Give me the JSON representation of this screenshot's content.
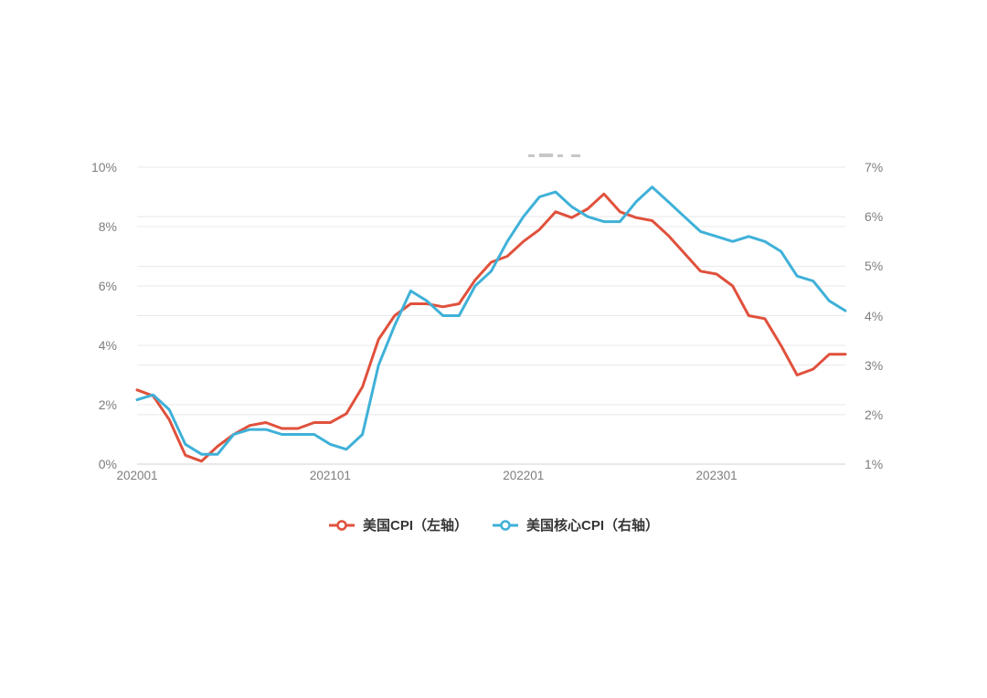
{
  "colors": {
    "cpi_line": "#e0513c",
    "core_cpi_line": "#3fb1d8",
    "grid_line": "#e8e8e8",
    "axis_baseline": "#d2d2d2",
    "tick_text": "#7e7e7e",
    "legend_text": "#363636"
  },
  "chart_data": {
    "type": "line",
    "x": [
      "202001",
      "202002",
      "202003",
      "202004",
      "202005",
      "202006",
      "202007",
      "202008",
      "202009",
      "202010",
      "202011",
      "202012",
      "202101",
      "202102",
      "202103",
      "202104",
      "202105",
      "202106",
      "202107",
      "202108",
      "202109",
      "202110",
      "202111",
      "202112",
      "202201",
      "202202",
      "202203",
      "202204",
      "202205",
      "202206",
      "202207",
      "202208",
      "202209",
      "202210",
      "202211",
      "202212",
      "202301",
      "202302",
      "202303",
      "202304",
      "202305",
      "202306",
      "202307",
      "202308",
      "202309"
    ],
    "x_tick_labels": [
      "202001",
      "202101",
      "202201",
      "202301"
    ],
    "series": [
      {
        "name": "美国CPI（左轴）",
        "axis": "left",
        "color": "#e0513c",
        "values": [
          2.5,
          2.3,
          1.5,
          0.3,
          0.1,
          0.6,
          1.0,
          1.3,
          1.4,
          1.2,
          1.2,
          1.4,
          1.4,
          1.7,
          2.6,
          4.2,
          5.0,
          5.4,
          5.4,
          5.3,
          5.4,
          6.2,
          6.8,
          7.0,
          7.5,
          7.9,
          8.5,
          8.3,
          8.6,
          9.1,
          8.5,
          8.3,
          8.2,
          7.7,
          7.1,
          6.5,
          6.4,
          6.0,
          5.0,
          4.9,
          4.0,
          3.0,
          3.2,
          3.7,
          3.7
        ]
      },
      {
        "name": "美国核心CPI（右轴）",
        "axis": "right",
        "color": "#3fb1d8",
        "values": [
          2.3,
          2.4,
          2.1,
          1.4,
          1.2,
          1.2,
          1.6,
          1.7,
          1.7,
          1.6,
          1.6,
          1.6,
          1.4,
          1.3,
          1.6,
          3.0,
          3.8,
          4.5,
          4.3,
          4.0,
          4.0,
          4.6,
          4.9,
          5.5,
          6.0,
          6.4,
          6.5,
          6.2,
          6.0,
          5.9,
          5.9,
          6.3,
          6.6,
          6.3,
          6.0,
          5.7,
          5.6,
          5.5,
          5.6,
          5.5,
          5.3,
          4.8,
          4.7,
          4.3,
          4.1
        ]
      }
    ],
    "left_axis": {
      "min": 0,
      "max": 10,
      "tick_labels": [
        "0%",
        "2%",
        "4%",
        "6%",
        "8%",
        "10%"
      ]
    },
    "right_axis": {
      "min": 1,
      "max": 7,
      "tick_labels": [
        "1%",
        "2%",
        "3%",
        "4%",
        "5%",
        "6%",
        "7%"
      ]
    },
    "grid": "horizontal gridlines for both left and right axis ticks",
    "legend_position": "bottom"
  }
}
